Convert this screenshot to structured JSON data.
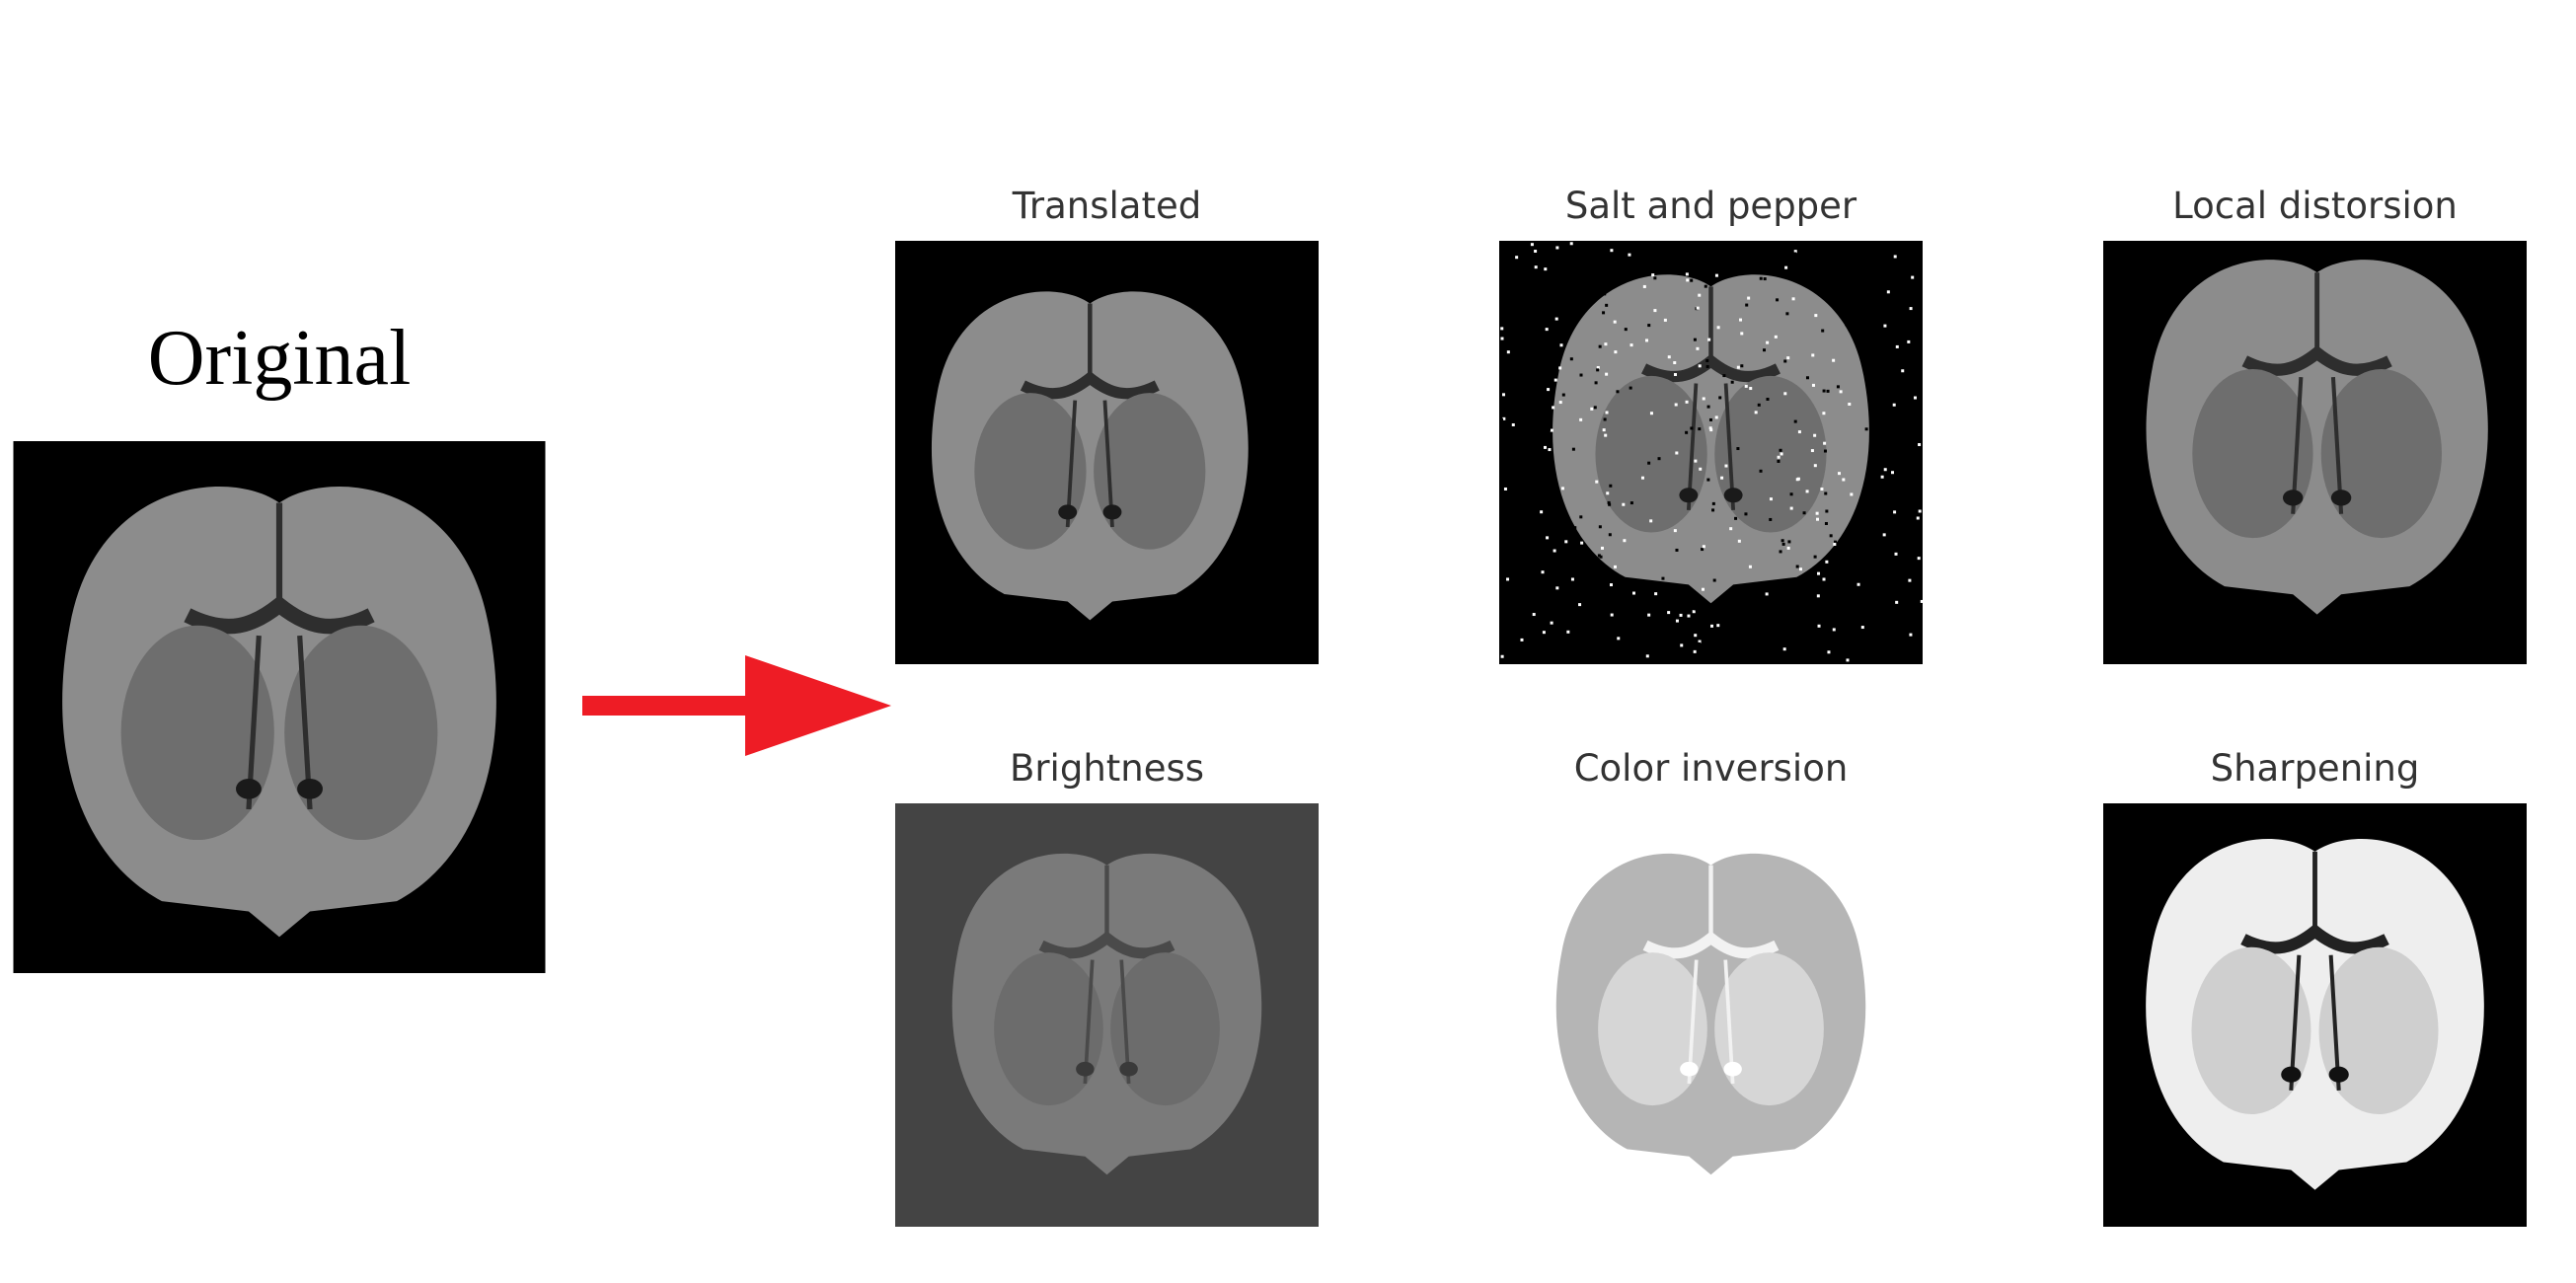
{
  "original": {
    "title": "Original"
  },
  "panels": [
    {
      "title": "Translated"
    },
    {
      "title": "Salt and pepper"
    },
    {
      "title": "Local distorsion"
    },
    {
      "title": "Brightness"
    },
    {
      "title": "Color inversion"
    },
    {
      "title": "Sharpening"
    }
  ]
}
